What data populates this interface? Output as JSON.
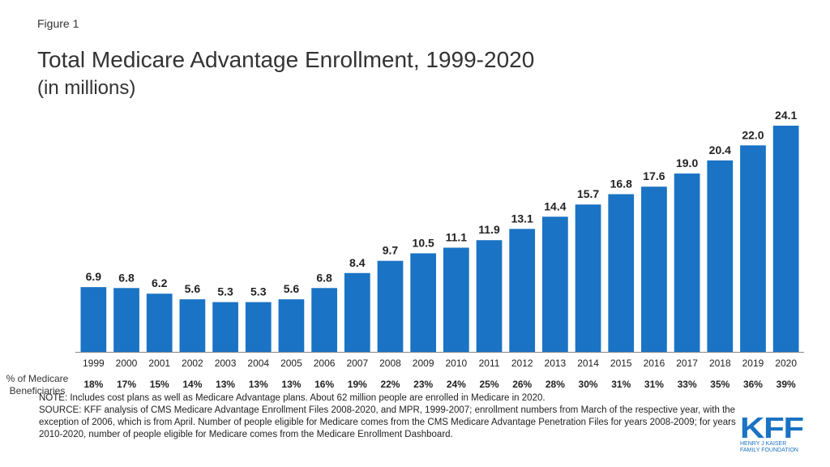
{
  "figure_label": "Figure 1",
  "title": "Total Medicare Advantage Enrollment, 1999-2020",
  "subtitle": "(in millions)",
  "row_label_line1": "% of Medicare",
  "row_label_line2": "Beneficiaries",
  "note": "NOTE: Includes cost plans as well as Medicare Advantage plans. About 62 million people are enrolled in Medicare in 2020.",
  "source": "SOURCE: KFF analysis of CMS Medicare Advantage Enrollment Files 2008-2020, and MPR, 1999-2007; enrollment numbers from March of the respective year, with the exception of 2006, which is from April. Number of people eligible for Medicare comes from the CMS Medicare Advantage Penetration Files for years 2008-2009; for years 2010-2020, number of people eligible for Medicare comes from the Medicare Enrollment Dashboard.",
  "logo": {
    "text": "KFF",
    "line1": "HENRY J KAISER",
    "line2": "FAMILY FOUNDATION",
    "color": "#1a73c4"
  },
  "colors": {
    "bar": "#1a73c4",
    "text": "#222222"
  },
  "chart_data": {
    "type": "bar",
    "categories": [
      "1999",
      "2000",
      "2001",
      "2002",
      "2003",
      "2004",
      "2005",
      "2006",
      "2007",
      "2008",
      "2009",
      "2010",
      "2011",
      "2012",
      "2013",
      "2014",
      "2015",
      "2016",
      "2017",
      "2018",
      "2019",
      "2020"
    ],
    "values": [
      6.9,
      6.8,
      6.2,
      5.6,
      5.3,
      5.3,
      5.6,
      6.8,
      8.4,
      9.7,
      10.5,
      11.1,
      11.9,
      13.1,
      14.4,
      15.7,
      16.8,
      17.6,
      19.0,
      20.4,
      22.0,
      24.1
    ],
    "value_labels": [
      "6.9",
      "6.8",
      "6.2",
      "5.6",
      "5.3",
      "5.3",
      "5.6",
      "6.8",
      "8.4",
      "9.7",
      "10.5",
      "11.1",
      "11.9",
      "13.1",
      "14.4",
      "15.7",
      "16.8",
      "17.6",
      "19.0",
      "20.4",
      "22.0",
      "24.1"
    ],
    "percent_of_beneficiaries": [
      "18%",
      "17%",
      "15%",
      "14%",
      "13%",
      "13%",
      "13%",
      "16%",
      "19%",
      "22%",
      "23%",
      "24%",
      "25%",
      "26%",
      "28%",
      "30%",
      "31%",
      "31%",
      "33%",
      "35%",
      "36%",
      "39%"
    ],
    "ylim": [
      0,
      24.1
    ],
    "grid": false,
    "legend": "none"
  }
}
